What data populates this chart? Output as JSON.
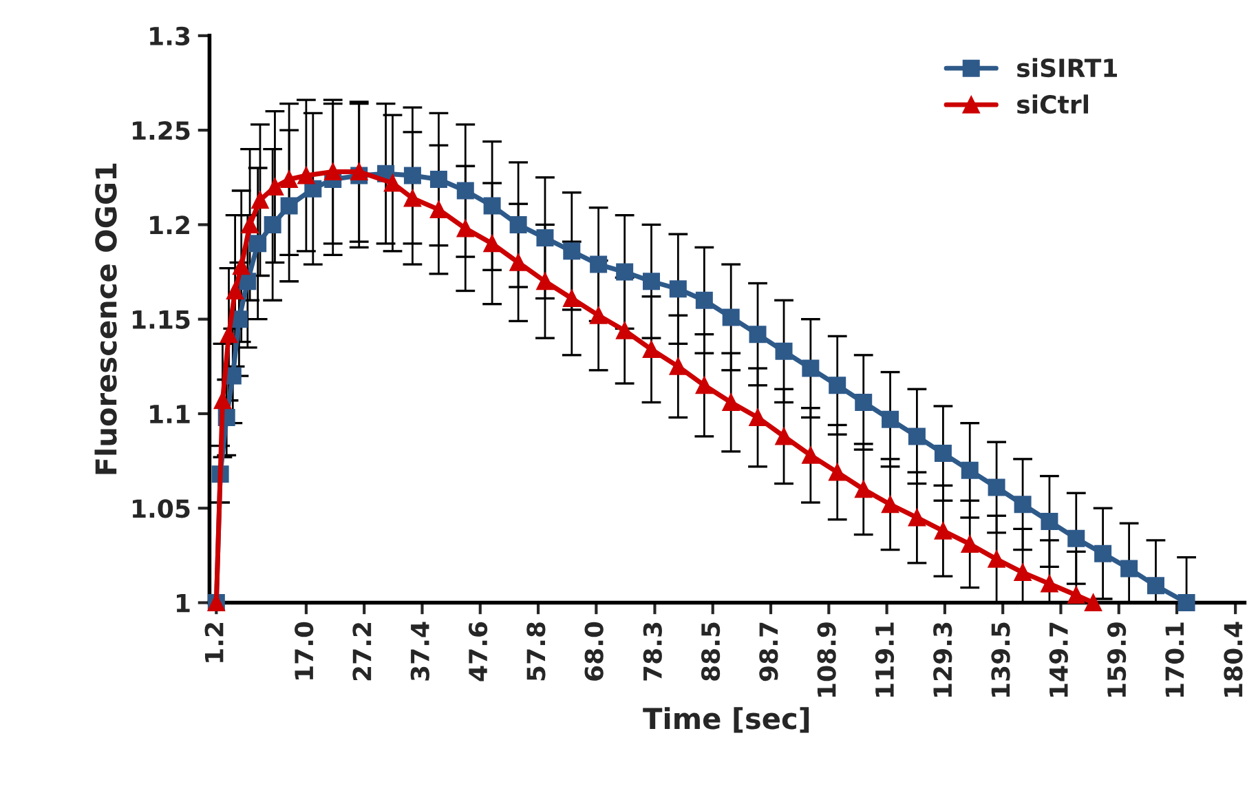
{
  "chart_data": {
    "type": "line",
    "xlabel": "Time [sec]",
    "ylabel": "Fluorescence OGG1",
    "xlim": [
      0,
      182
    ],
    "ylim": [
      1,
      1.3
    ],
    "xticks": [
      1.2,
      {
        "value": 17.0,
        "label": "17.0"
      },
      27.2,
      37.4,
      47.6,
      57.8,
      {
        "value": 68.0,
        "label": "68.0"
      },
      78.3,
      88.5,
      98.7,
      108.9,
      119.1,
      129.3,
      139.5,
      149.7,
      159.9,
      170.1,
      180.4
    ],
    "yticks": [
      {
        "value": 1,
        "label": "1"
      },
      1.05,
      1.1,
      1.15,
      1.2,
      1.25,
      1.3
    ],
    "legend": "top right",
    "grid": false,
    "series": [
      {
        "name": "siSIRT1",
        "color": "#2e5a8a",
        "marker": "square",
        "x": [
          1.2,
          1.9,
          3.0,
          4.1,
          5.2,
          6.7,
          8.5,
          11.1,
          14.0,
          18.2,
          21.7,
          26.3,
          31.0,
          35.7,
          40.3,
          45.0,
          49.7,
          54.3,
          59.0,
          63.7,
          68.4,
          73.0,
          77.7,
          82.4,
          87.0,
          91.7,
          96.4,
          101.0,
          105.7,
          110.4,
          115.0,
          119.7,
          124.4,
          129.0,
          133.7,
          138.4,
          143.0,
          147.7,
          152.4,
          157.1,
          161.7,
          166.4,
          171.8
        ],
        "values": [
          1.0,
          1.068,
          1.098,
          1.12,
          1.15,
          1.17,
          1.19,
          1.2,
          1.21,
          1.219,
          1.224,
          1.226,
          1.227,
          1.226,
          1.224,
          1.218,
          1.21,
          1.2,
          1.193,
          1.186,
          1.179,
          1.175,
          1.17,
          1.166,
          1.16,
          1.151,
          1.142,
          1.133,
          1.124,
          1.115,
          1.106,
          1.097,
          1.088,
          1.079,
          1.07,
          1.061,
          1.052,
          1.043,
          1.034,
          1.026,
          1.018,
          1.009,
          1.0
        ],
        "errors": [
          null,
          0.015,
          0.02,
          0.025,
          0.03,
          0.035,
          0.04,
          0.04,
          0.04,
          0.04,
          0.04,
          0.038,
          0.037,
          0.036,
          0.035,
          0.035,
          0.034,
          0.033,
          0.032,
          0.031,
          0.03,
          0.03,
          0.03,
          0.029,
          0.028,
          0.028,
          0.027,
          0.027,
          0.026,
          0.026,
          0.025,
          0.025,
          0.025,
          0.025,
          0.025,
          0.024,
          0.024,
          0.024,
          0.024,
          0.024,
          0.024,
          0.024,
          0.024
        ]
      },
      {
        "name": "siCtrl",
        "color": "#cc0000",
        "marker": "triangle",
        "x": [
          1.2,
          2.3,
          3.4,
          4.5,
          5.6,
          7.1,
          8.9,
          11.5,
          14.0,
          17.0,
          21.7,
          26.3,
          32.2,
          35.7,
          40.3,
          45.0,
          49.7,
          54.3,
          59.0,
          63.7,
          68.4,
          73.0,
          77.7,
          82.4,
          87.0,
          91.7,
          96.4,
          101.0,
          105.7,
          110.4,
          115.0,
          119.7,
          124.4,
          129.0,
          133.7,
          138.4,
          143.0,
          147.7,
          152.4,
          155.4
        ],
        "values": [
          1.0,
          1.107,
          1.142,
          1.165,
          1.178,
          1.2,
          1.213,
          1.22,
          1.224,
          1.226,
          1.228,
          1.228,
          1.222,
          1.214,
          1.208,
          1.198,
          1.19,
          1.18,
          1.17,
          1.161,
          1.152,
          1.144,
          1.134,
          1.125,
          1.115,
          1.106,
          1.098,
          1.088,
          1.078,
          1.069,
          1.06,
          1.052,
          1.045,
          1.038,
          1.031,
          1.023,
          1.016,
          1.01,
          1.004,
          1.0
        ],
        "errors": [
          null,
          0.03,
          0.035,
          0.04,
          0.04,
          0.04,
          0.04,
          0.04,
          0.04,
          0.04,
          0.038,
          0.037,
          0.036,
          0.035,
          0.034,
          0.033,
          0.032,
          0.031,
          0.03,
          0.03,
          0.029,
          0.028,
          0.028,
          0.027,
          0.027,
          0.026,
          0.026,
          0.025,
          0.025,
          0.025,
          0.024,
          0.024,
          0.024,
          0.024,
          0.023,
          0.023,
          0.023,
          0.023,
          0.023,
          null
        ]
      }
    ]
  }
}
